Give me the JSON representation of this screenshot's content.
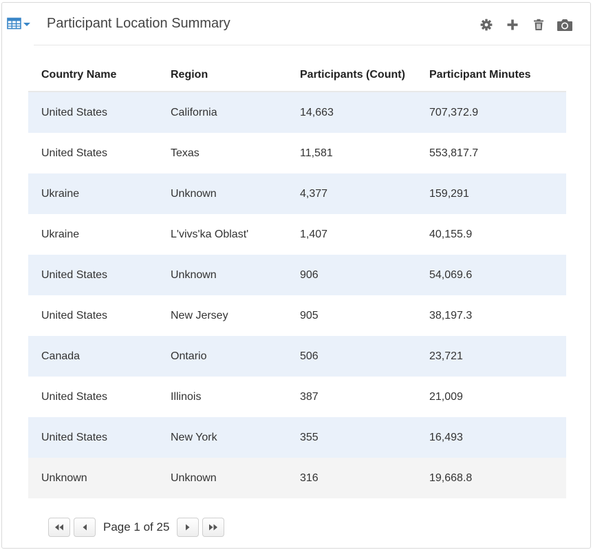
{
  "header": {
    "title": "Participant Location Summary",
    "view_toggle_icon": "table-grid-icon",
    "tools": [
      "gear-icon",
      "plus-icon",
      "trash-icon",
      "camera-icon"
    ]
  },
  "colors": {
    "accent": "#3a87c8",
    "row_stripe": "#eaf1fa",
    "last_row": "#f4f4f4",
    "icon_gray": "#666666"
  },
  "table": {
    "columns": [
      "Country Name",
      "Region",
      "Participants (Count)",
      "Participant Minutes"
    ],
    "rows": [
      [
        "United States",
        "California",
        "14,663",
        "707,372.9"
      ],
      [
        "United States",
        "Texas",
        "11,581",
        "553,817.7"
      ],
      [
        "Ukraine",
        "Unknown",
        "4,377",
        "159,291"
      ],
      [
        "Ukraine",
        "L'vivs'ka Oblast'",
        "1,407",
        "40,155.9"
      ],
      [
        "United States",
        "Unknown",
        "906",
        "54,069.6"
      ],
      [
        "United States",
        "New Jersey",
        "905",
        "38,197.3"
      ],
      [
        "Canada",
        "Ontario",
        "506",
        "23,721"
      ],
      [
        "United States",
        "Illinois",
        "387",
        "21,009"
      ],
      [
        "United States",
        "New York",
        "355",
        "16,493"
      ],
      [
        "Unknown",
        "Unknown",
        "316",
        "19,668.8"
      ]
    ]
  },
  "pager": {
    "label": "Page 1 of 25"
  }
}
